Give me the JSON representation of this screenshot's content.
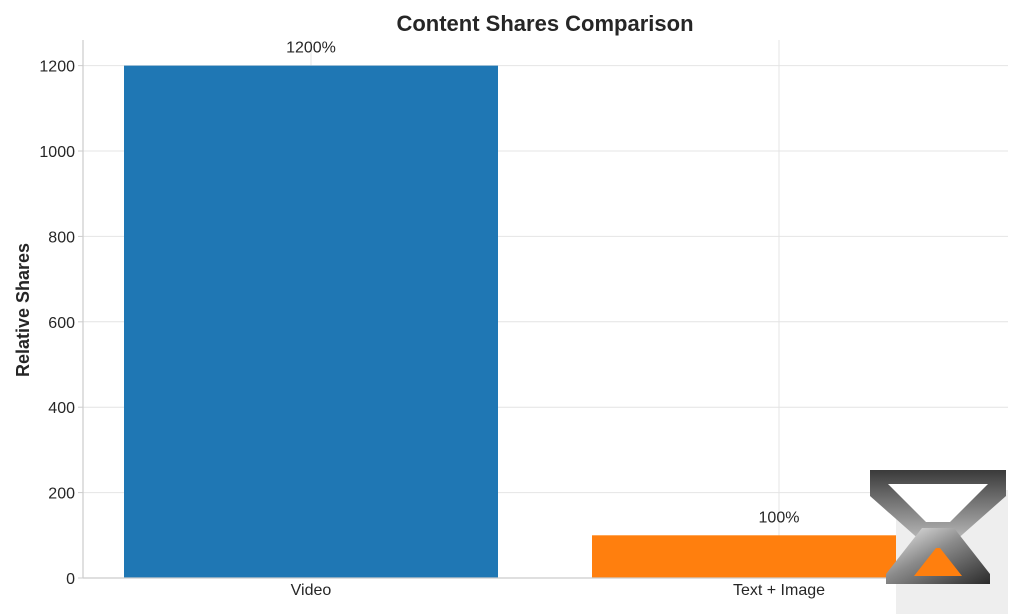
{
  "chart_data": {
    "type": "bar",
    "title": "Content Shares Comparison",
    "xlabel": "",
    "ylabel": "Relative Shares",
    "categories": [
      "Video",
      "Text + Image"
    ],
    "values": [
      1200,
      100
    ],
    "data_labels": [
      "1200%",
      "100%"
    ],
    "colors": [
      "#1f77b4",
      "#ff7f0e"
    ],
    "ylim": [
      0,
      1260
    ],
    "yticks": [
      0,
      200,
      400,
      600,
      800,
      1000,
      1200
    ],
    "grid": true,
    "legend": "none"
  },
  "watermark": {
    "icon": "hourglass-logo-icon"
  }
}
